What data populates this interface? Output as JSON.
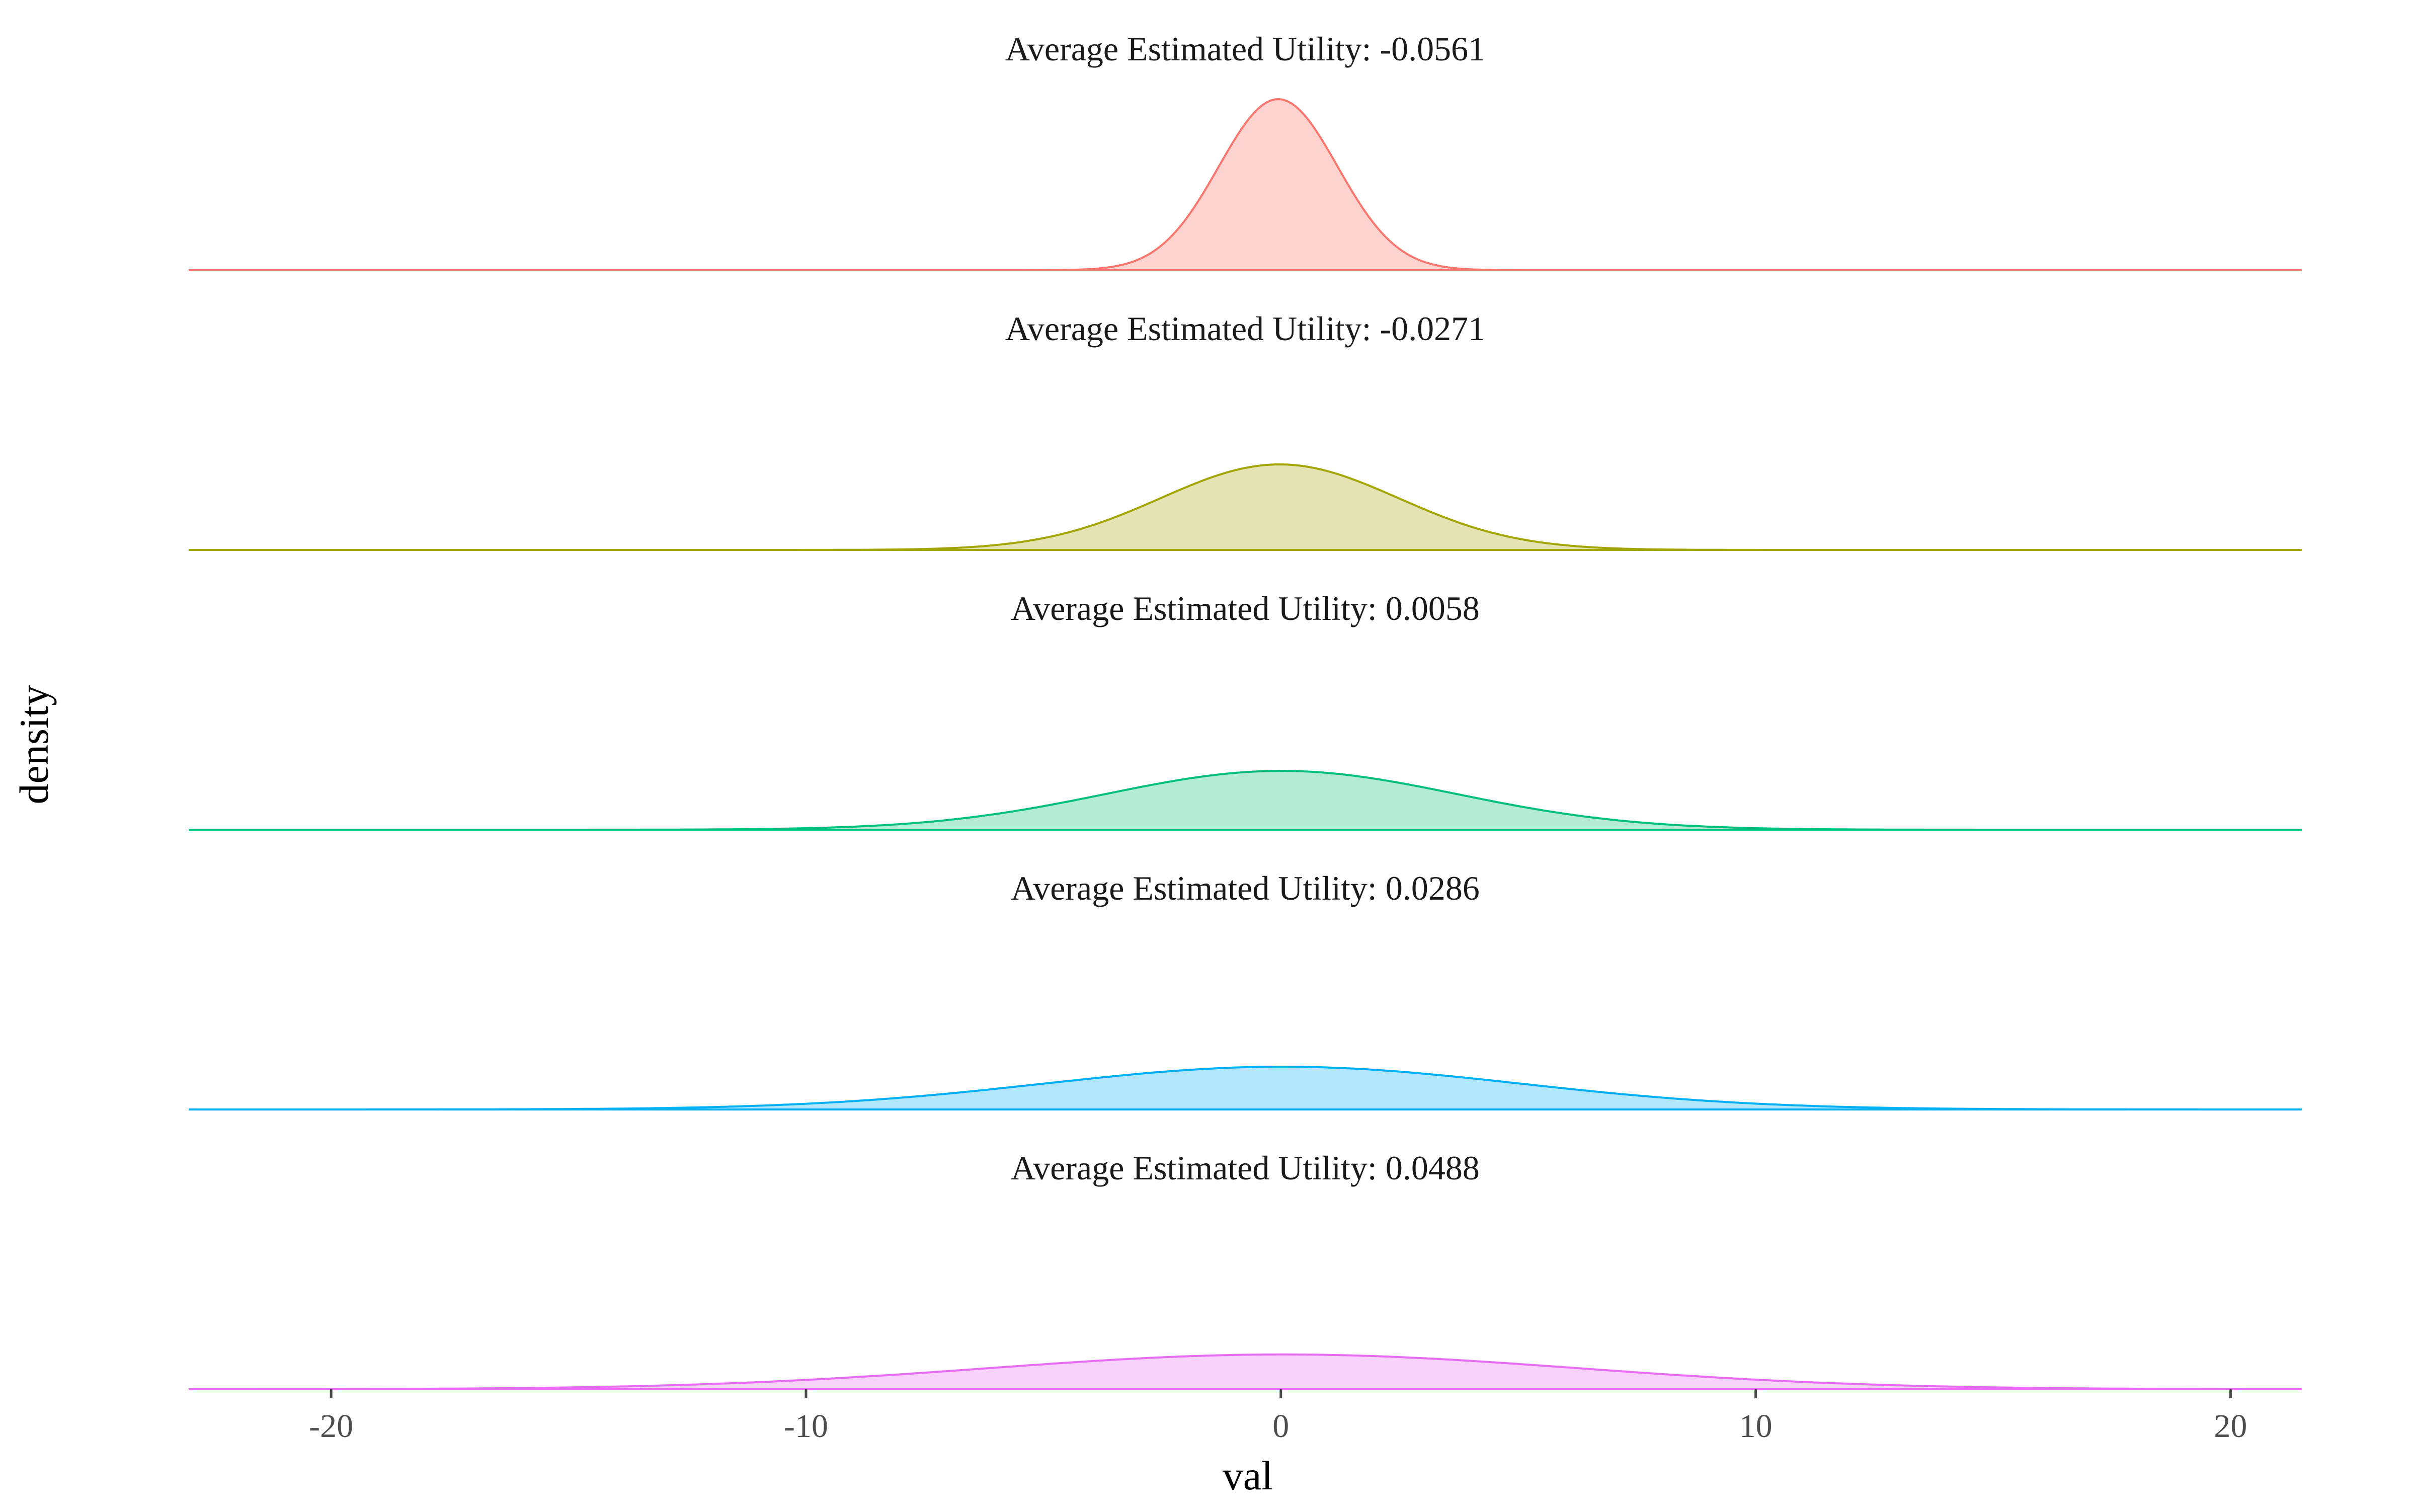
{
  "chart_data": {
    "type": "area",
    "title": "",
    "xlabel": "val",
    "ylabel": "density",
    "xlim": [
      -23,
      21.5
    ],
    "x_ticks": [
      -20,
      -10,
      0,
      10,
      20
    ],
    "x_tick_labels": [
      "-20",
      "-10",
      "0",
      "10",
      "20"
    ],
    "grid": false,
    "legend": "none",
    "facets": [
      {
        "title": "Average Estimated Utility: -0.0561",
        "mean": -0.0561,
        "sd": 1.25,
        "peak_density": 0.32,
        "color": "#F8766D",
        "fill": "#FDD3D0"
      },
      {
        "title": "Average Estimated Utility: -0.0271",
        "mean": -0.0271,
        "sd": 2.5,
        "peak_density": 0.16,
        "color": "#A3A500",
        "fill": "#E3E3B3"
      },
      {
        "title": "Average Estimated Utility: 0.0058",
        "mean": 0.0058,
        "sd": 3.7,
        "peak_density": 0.11,
        "color": "#00BF7D",
        "fill": "#B3EBD7"
      },
      {
        "title": "Average Estimated Utility: 0.0286",
        "mean": 0.0286,
        "sd": 5.0,
        "peak_density": 0.08,
        "color": "#00B0F6",
        "fill": "#B3E7FC"
      },
      {
        "title": "Average Estimated Utility: 0.0488",
        "mean": 0.0488,
        "sd": 6.2,
        "peak_density": 0.065,
        "color": "#E76BF3",
        "fill": "#F8D2FB"
      }
    ]
  }
}
